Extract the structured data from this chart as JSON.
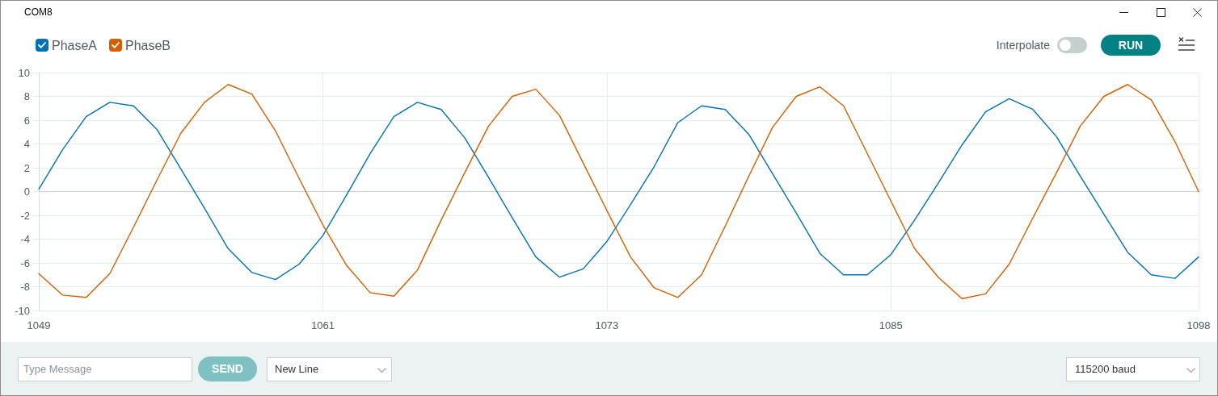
{
  "chart_data": {
    "type": "line",
    "title": "COM8",
    "x": [
      1049,
      1050,
      1051,
      1052,
      1053,
      1054,
      1055,
      1056,
      1057,
      1058,
      1059,
      1060,
      1061,
      1062,
      1063,
      1064,
      1065,
      1066,
      1067,
      1068,
      1069,
      1070,
      1071,
      1072,
      1073,
      1074,
      1075,
      1076,
      1077,
      1078,
      1079,
      1080,
      1081,
      1082,
      1083,
      1084,
      1085,
      1086,
      1087,
      1088,
      1089,
      1090,
      1091,
      1092,
      1093,
      1094,
      1095,
      1096,
      1097,
      1098
    ],
    "series": [
      {
        "name": "PhaseA",
        "color": "#0072b2",
        "values": [
          0.2,
          3.5,
          6.3,
          7.5,
          7.2,
          5.2,
          1.9,
          -1.4,
          -4.8,
          -6.8,
          -7.4,
          -6.1,
          -3.7,
          -0.3,
          3.2,
          6.3,
          7.5,
          6.9,
          4.5,
          1.2,
          -2.2,
          -5.5,
          -7.2,
          -6.5,
          -4.2,
          -1.1,
          2.1,
          5.8,
          7.2,
          6.9,
          4.8,
          1.5,
          -1.8,
          -5.2,
          -7.0,
          -7.0,
          -5.3,
          -2.4,
          0.7,
          3.9,
          6.7,
          7.8,
          6.9,
          4.6,
          1.3,
          -1.9,
          -5.1,
          -7.0,
          -7.3,
          -5.5
        ]
      },
      {
        "name": "PhaseB",
        "color": "#d55e00",
        "values": [
          -6.9,
          -8.7,
          -8.9,
          -6.9,
          -3.0,
          1.0,
          4.9,
          7.5,
          9.0,
          8.2,
          5.1,
          1.1,
          -2.8,
          -6.2,
          -8.5,
          -8.8,
          -6.6,
          -2.4,
          1.6,
          5.5,
          8.0,
          8.6,
          6.4,
          2.4,
          -1.6,
          -5.5,
          -8.1,
          -8.9,
          -7.0,
          -2.9,
          1.3,
          5.4,
          8.0,
          8.8,
          7.2,
          3.2,
          -0.8,
          -4.8,
          -7.2,
          -9.0,
          -8.6,
          -6.1,
          -2.2,
          1.6,
          5.5,
          8.0,
          9.0,
          7.7,
          4.2,
          0.0
        ]
      }
    ],
    "xlim": [
      1049,
      1098
    ],
    "xticks": [
      1049,
      1061,
      1073,
      1085,
      1098
    ],
    "ylim": [
      -10,
      10
    ],
    "yticks": [
      -10,
      -8,
      -6,
      -4,
      -2,
      0,
      2,
      4,
      6,
      8,
      10
    ],
    "grid": true,
    "legend": "top left",
    "annotations": [
      "Interpolate",
      "RUN",
      "Type Message",
      "SEND",
      "New Line",
      "115200 baud"
    ]
  }
}
